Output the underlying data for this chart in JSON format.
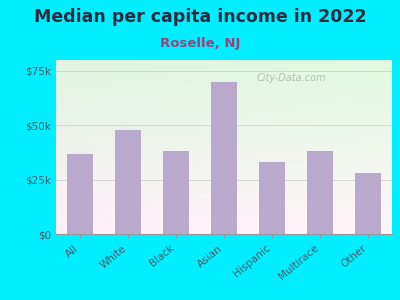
{
  "title": "Median per capita income in 2022",
  "subtitle": "Roselle, NJ",
  "categories": [
    "All",
    "White",
    "Black",
    "Asian",
    "Hispanic",
    "Multirace",
    "Other"
  ],
  "values": [
    37000,
    48000,
    38000,
    70000,
    33000,
    38000,
    28000
  ],
  "bar_color": "#b9a9cc",
  "background_outer": "#00eeff",
  "title_color": "#2a2a3e",
  "subtitle_color": "#a0407a",
  "tick_color": "#4a5a6a",
  "ylim": [
    0,
    80000
  ],
  "yticks": [
    0,
    25000,
    50000,
    75000
  ],
  "ytick_labels": [
    "$0",
    "$25k",
    "$50k",
    "$75k"
  ],
  "title_fontsize": 12.5,
  "subtitle_fontsize": 9.5,
  "watermark": "City-Data.com"
}
